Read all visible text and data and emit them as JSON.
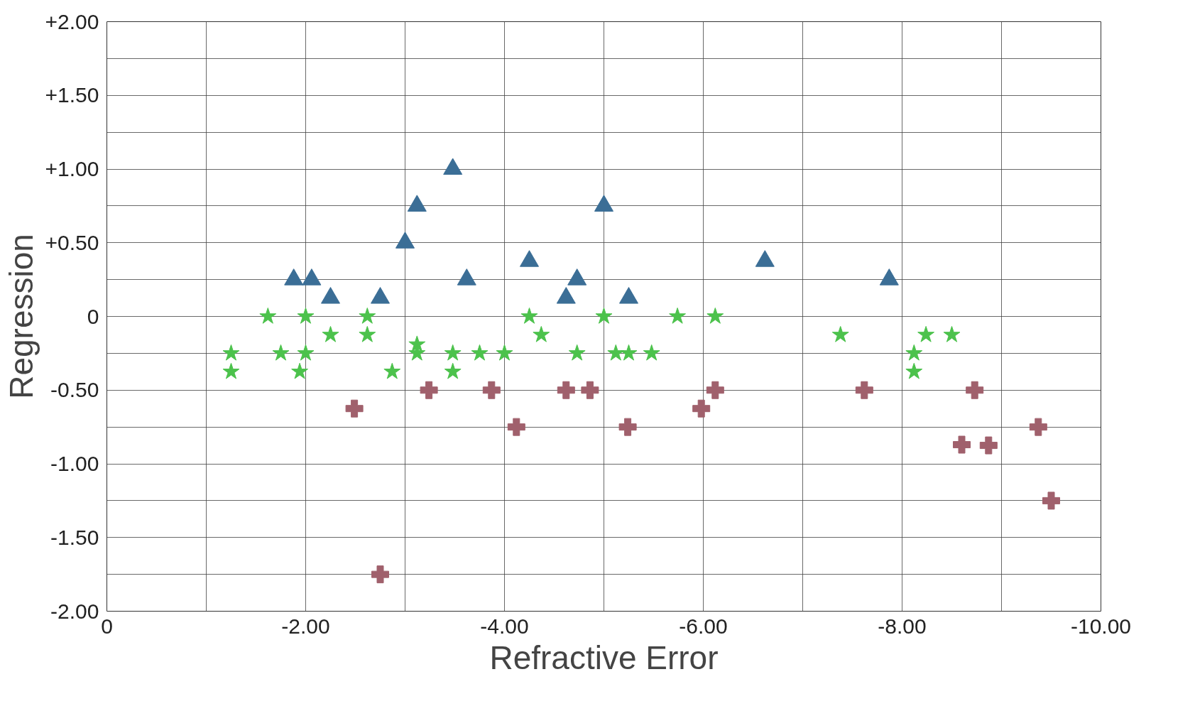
{
  "chart_data": {
    "type": "scatter",
    "xlabel": "Refractive Error",
    "ylabel": "Regression",
    "xlim": [
      0,
      -10
    ],
    "xticks": [
      0,
      {
        "value": -1,
        "label": null
      },
      {
        "value": -2,
        "label": "-2.00"
      },
      {
        "value": -3,
        "label": null
      },
      {
        "value": -4,
        "label": "-4.00"
      },
      {
        "value": -5,
        "label": null
      },
      {
        "value": -6,
        "label": "-6.00"
      },
      {
        "value": -7,
        "label": null
      },
      {
        "value": -8,
        "label": "-8.00"
      },
      {
        "value": -9,
        "label": null
      },
      {
        "value": -10,
        "label": "-10.00"
      }
    ],
    "ylim": [
      -2,
      2
    ],
    "yticks": [
      {
        "value": -2,
        "label": "-2.00"
      },
      {
        "value": -1.75,
        "label": null
      },
      {
        "value": -1.5,
        "label": "-1.50"
      },
      {
        "value": -1.25,
        "label": null
      },
      {
        "value": -1,
        "label": "-1.00"
      },
      {
        "value": -0.75,
        "label": null
      },
      {
        "value": -0.5,
        "label": "-0.50"
      },
      {
        "value": -0.25,
        "label": null
      },
      0,
      {
        "value": 0.25,
        "label": null
      },
      {
        "value": 0.5,
        "label": "+0.50"
      },
      {
        "value": 0.75,
        "label": null
      },
      {
        "value": 1,
        "label": "+1.00"
      },
      {
        "value": 1.25,
        "label": null
      },
      {
        "value": 1.5,
        "label": "+1.50"
      },
      {
        "value": 1.75,
        "label": null
      },
      {
        "value": 2,
        "label": "+2.00"
      }
    ],
    "grid": true,
    "series": [
      {
        "color": "#3b6e96",
        "marker": "triangle",
        "x": [
          -1.88,
          -2.06,
          -2.25,
          -2.75,
          -3.0,
          -3.12,
          -3.48,
          -3.62,
          -4.25,
          -4.62,
          -4.73,
          -5.0,
          -5.25,
          -6.62,
          -7.87
        ],
        "values": [
          0.25,
          0.25,
          0.125,
          0.125,
          0.5,
          0.75,
          1.0,
          0.25,
          0.375,
          0.125,
          0.25,
          0.75,
          0.125,
          0.375,
          0.25
        ]
      },
      {
        "color": "#4cc24c",
        "marker": "star",
        "x": [
          -1.25,
          -1.25,
          -1.62,
          -1.75,
          -1.94,
          -2.0,
          -2.0,
          -2.25,
          -2.62,
          -2.62,
          -2.87,
          -3.12,
          -3.12,
          -3.48,
          -3.48,
          -3.75,
          -4.0,
          -4.25,
          -4.37,
          -4.73,
          -5.0,
          -5.12,
          -5.25,
          -5.48,
          -5.74,
          -6.12,
          -7.38,
          -8.12,
          -8.12,
          -8.24,
          -8.5
        ],
        "values": [
          -0.25,
          -0.375,
          0,
          -0.25,
          -0.375,
          0,
          -0.25,
          -0.125,
          0,
          -0.125,
          -0.375,
          -0.19,
          -0.25,
          -0.25,
          -0.375,
          -0.25,
          -0.25,
          0,
          -0.125,
          -0.25,
          0,
          -0.25,
          -0.25,
          -0.25,
          0,
          0,
          -0.125,
          -0.25,
          -0.375,
          -0.125,
          -0.125
        ]
      },
      {
        "color": "#a0606c",
        "marker": "cross",
        "x": [
          -2.49,
          -2.75,
          -3.24,
          -3.87,
          -4.12,
          -4.62,
          -4.86,
          -5.24,
          -5.98,
          -6.12,
          -7.62,
          -8.6,
          -8.73,
          -8.87,
          -9.37,
          -9.5
        ],
        "values": [
          -0.625,
          -1.75,
          -0.5,
          -0.5,
          -0.75,
          -0.5,
          -0.5,
          -0.75,
          -0.625,
          -0.5,
          -0.5,
          -0.87,
          -0.5,
          -0.875,
          -0.75,
          -1.25
        ]
      }
    ]
  }
}
